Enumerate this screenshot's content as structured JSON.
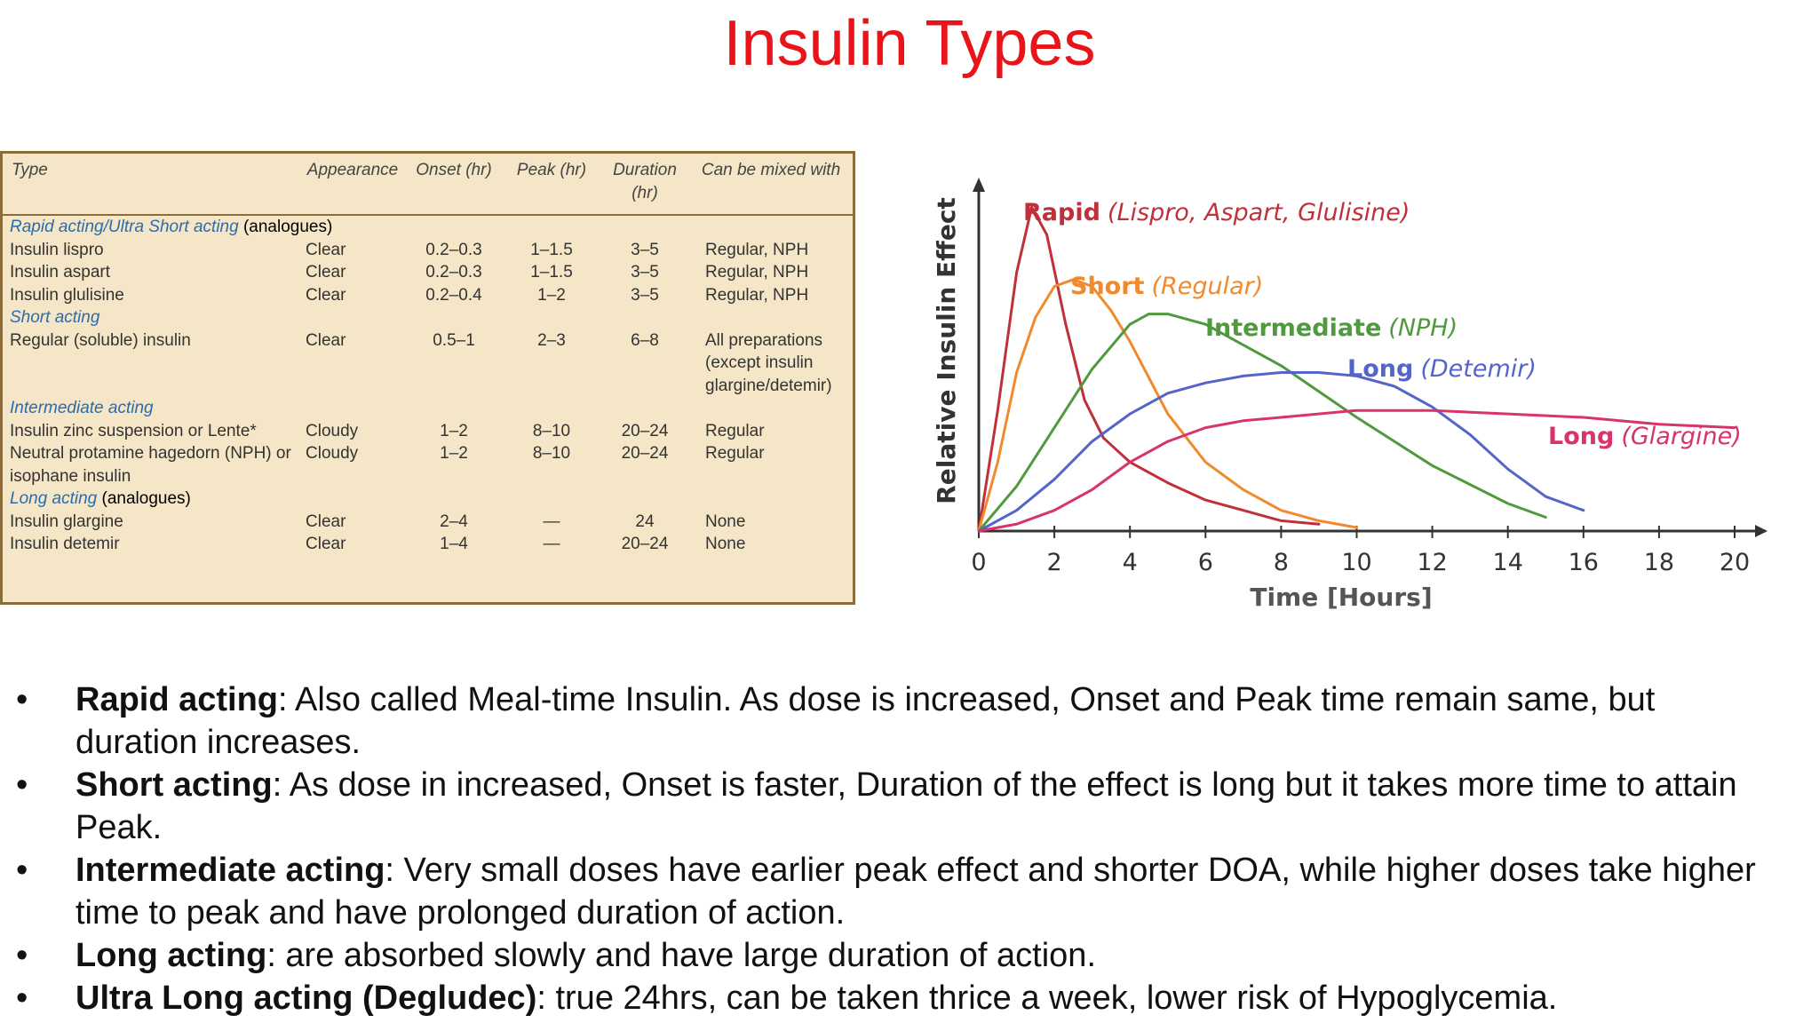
{
  "slide_title": "Insulin Types",
  "table": {
    "headers": {
      "type": "Type",
      "appearance": "Appearance",
      "onset": "Onset (hr)",
      "peak": "Peak (hr)",
      "duration": "Duration (hr)",
      "mixed": "Can be mixed with"
    },
    "groups": [
      {
        "label": "Rapid acting/Ultra Short acting",
        "suffix": "(analogues)",
        "rows": [
          {
            "type": "Insulin lispro",
            "appearance": "Clear",
            "onset": "0.2–0.3",
            "peak": "1–1.5",
            "duration": "3–5",
            "mixed": "Regular, NPH"
          },
          {
            "type": "Insulin aspart",
            "appearance": "Clear",
            "onset": "0.2–0.3",
            "peak": "1–1.5",
            "duration": "3–5",
            "mixed": "Regular, NPH"
          },
          {
            "type": "Insulin glulisine",
            "appearance": "Clear",
            "onset": "0.2–0.4",
            "peak": "1–2",
            "duration": "3–5",
            "mixed": "Regular, NPH"
          }
        ]
      },
      {
        "label": "Short acting",
        "suffix": "",
        "rows": [
          {
            "type": "Regular (soluble) insulin",
            "appearance": "Clear",
            "onset": "0.5–1",
            "peak": "2–3",
            "duration": "6–8",
            "mixed": "All preparations (except insulin glargine/detemir)"
          }
        ]
      },
      {
        "label": "Intermediate acting",
        "suffix": "",
        "rows": [
          {
            "type": "Insulin zinc suspension or Lente*",
            "appearance": "Cloudy",
            "onset": "1–2",
            "peak": "8–10",
            "duration": "20–24",
            "mixed": "Regular"
          },
          {
            "type": "Neutral protamine hagedorn (NPH) or isophane insulin",
            "appearance": "Cloudy",
            "onset": "1–2",
            "peak": "8–10",
            "duration": "20–24",
            "mixed": "Regular"
          }
        ]
      },
      {
        "label": "Long acting",
        "suffix": "(analogues)",
        "rows": [
          {
            "type": "Insulin glargine",
            "appearance": "Clear",
            "onset": "2–4",
            "peak": "—",
            "duration": "24",
            "mixed": "None"
          },
          {
            "type": "Insulin detemir",
            "appearance": "Clear",
            "onset": "1–4",
            "peak": "—",
            "duration": "20–24",
            "mixed": "None"
          }
        ]
      }
    ]
  },
  "chart_data": {
    "type": "line",
    "xlabel": "Time [Hours]",
    "ylabel": "Relative Insulin Effect",
    "xlim": [
      0,
      20
    ],
    "ylim": [
      0,
      1
    ],
    "xticks": [
      0,
      2,
      4,
      6,
      8,
      10,
      12,
      14,
      16,
      18,
      20
    ],
    "grid": false,
    "series": [
      {
        "name": "Rapid",
        "detail": "(Lispro, Aspart, Glulisine)",
        "color": "#c0303a",
        "x": [
          0,
          0.5,
          1,
          1.4,
          1.8,
          2.3,
          2.8,
          3.3,
          4,
          5,
          6,
          7,
          8,
          9
        ],
        "y": [
          0,
          0.35,
          0.75,
          0.94,
          0.86,
          0.6,
          0.38,
          0.27,
          0.2,
          0.14,
          0.09,
          0.06,
          0.03,
          0.02
        ]
      },
      {
        "name": "Short",
        "detail": "(Regular)",
        "color": "#f08a2c",
        "x": [
          0,
          0.5,
          1,
          1.5,
          2,
          2.5,
          3,
          3.5,
          4,
          5,
          6,
          7,
          8,
          9,
          10
        ],
        "y": [
          0,
          0.2,
          0.46,
          0.62,
          0.71,
          0.73,
          0.71,
          0.64,
          0.55,
          0.34,
          0.2,
          0.12,
          0.06,
          0.03,
          0.01
        ]
      },
      {
        "name": "Intermediate",
        "detail": "(NPH)",
        "color": "#4e9a3c",
        "x": [
          0,
          1,
          2,
          3,
          4,
          4.5,
          5,
          6,
          8,
          10,
          12,
          14,
          15
        ],
        "y": [
          0,
          0.13,
          0.3,
          0.47,
          0.6,
          0.63,
          0.63,
          0.6,
          0.48,
          0.33,
          0.19,
          0.08,
          0.04
        ]
      },
      {
        "name": "Long",
        "detail": "(Detemir)",
        "color": "#5564c8",
        "x": [
          0,
          1,
          2,
          3,
          4,
          5,
          6,
          7,
          8,
          9,
          10,
          11,
          12,
          13,
          14,
          15,
          16
        ],
        "y": [
          0,
          0.06,
          0.15,
          0.26,
          0.34,
          0.4,
          0.43,
          0.45,
          0.46,
          0.46,
          0.45,
          0.42,
          0.36,
          0.28,
          0.18,
          0.1,
          0.06
        ]
      },
      {
        "name": "Long",
        "detail": "(Glargine)",
        "color": "#d8336a",
        "x": [
          0,
          1,
          2,
          3,
          4,
          5,
          6,
          7,
          8,
          10,
          12,
          14,
          16,
          18,
          20
        ],
        "y": [
          0,
          0.02,
          0.06,
          0.12,
          0.2,
          0.26,
          0.3,
          0.32,
          0.33,
          0.35,
          0.35,
          0.34,
          0.33,
          0.31,
          0.3
        ]
      }
    ]
  },
  "bullets": [
    {
      "term": "Rapid acting",
      "text": ": Also called Meal-time Insulin. As dose is increased, Onset and Peak time remain same, but duration increases."
    },
    {
      "term": "Short acting",
      "text": ": As dose in increased, Onset is faster, Duration of the effect is long but it takes more time to attain Peak."
    },
    {
      "term": "Intermediate acting",
      "text": ": Very small doses have earlier peak effect and shorter DOA, while higher doses take higher time to peak and have prolonged duration of action."
    },
    {
      "term": "Long acting",
      "text": ": are absorbed slowly and have large duration of action."
    },
    {
      "term": "Ultra Long acting (Degludec)",
      "text": ": true 24hrs, can be taken thrice a week, lower risk of Hypoglycemia."
    }
  ],
  "bullet_symbol": "•"
}
